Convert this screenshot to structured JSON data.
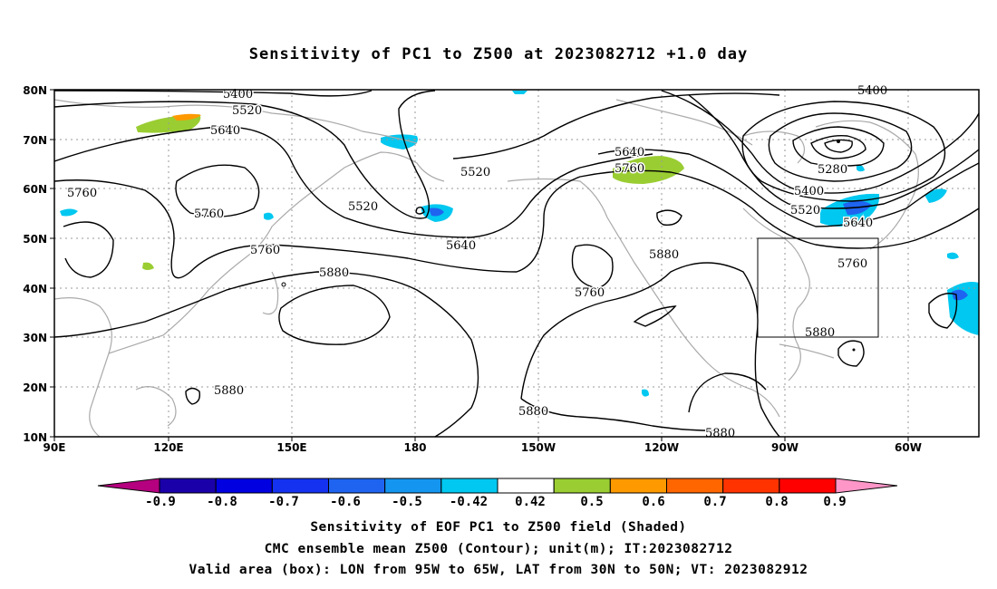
{
  "title": "Sensitivity of PC1 to Z500 at 2023082712 +1.0 day",
  "lat_labels": [
    "80N",
    "70N",
    "60N",
    "50N",
    "40N",
    "30N",
    "20N",
    "10N"
  ],
  "lon_labels": [
    "90E",
    "120E",
    "150E",
    "180",
    "150W",
    "120W",
    "90W",
    "60W"
  ],
  "contour_labels": [
    "5400",
    "5400",
    "5520",
    "5640",
    "5520",
    "5520",
    "5640",
    "5640",
    "5760",
    "5760",
    "5760",
    "5760",
    "5280",
    "5400",
    "5520",
    "5640",
    "5760",
    "5760",
    "5880",
    "5880",
    "5880",
    "5880",
    "5880",
    "5880"
  ],
  "colorbar": {
    "labels": [
      "-0.9",
      "-0.8",
      "-0.7",
      "-0.6",
      "-0.5",
      "-0.42",
      "0.42",
      "0.5",
      "0.6",
      "0.7",
      "0.8",
      "0.9"
    ],
    "colors": [
      "#b5007f",
      "#1a00a8",
      "#0000e0",
      "#1432f0",
      "#1e64f0",
      "#1496f0",
      "#00c8f0",
      "#ffffff",
      "#9acd32",
      "#ff9900",
      "#ff6600",
      "#ff3300",
      "#ff0000",
      "#ff96c8"
    ]
  },
  "valid_box": {
    "lon_min": -95,
    "lon_max": -65,
    "lat_min": 30,
    "lat_max": 50
  },
  "captions": [
    "Sensitivity of EOF PC1 to Z500 field (Shaded)",
    "CMC ensemble mean Z500 (Contour); unit(m); IT:2023082712",
    "Valid area (box): LON from 95W to 65W, LAT from 30N to 50N; VT: 2023082912"
  ]
}
